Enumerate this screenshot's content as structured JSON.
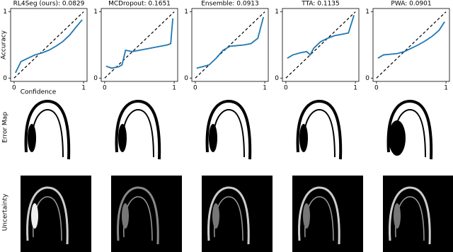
{
  "chart_data": [
    {
      "type": "line",
      "title": "RL4Seg (ours): 0.0829",
      "xlabel": "Confidence",
      "ylabel": "Accuracy",
      "x": [
        0.02,
        0.1,
        0.2,
        0.3,
        0.4,
        0.5,
        0.6,
        0.7,
        0.8,
        0.9,
        0.98
      ],
      "values": [
        0.08,
        0.25,
        0.3,
        0.35,
        0.38,
        0.42,
        0.48,
        0.55,
        0.65,
        0.78,
        0.88
      ],
      "color": "#1f77b4",
      "xlim": [
        -0.05,
        1.05
      ],
      "ylim": [
        -0.05,
        1.05
      ],
      "xticks": [
        0,
        1
      ],
      "yticks": [
        0,
        1
      ]
    },
    {
      "type": "line",
      "title": "MCDropout: 0.1651",
      "x": [
        0.02,
        0.1,
        0.2,
        0.25,
        0.3,
        0.4,
        0.5,
        0.6,
        0.7,
        0.8,
        0.9,
        0.95,
        0.98
      ],
      "values": [
        0.18,
        0.15,
        0.17,
        0.2,
        0.42,
        0.4,
        0.42,
        0.44,
        0.46,
        0.48,
        0.5,
        0.52,
        0.9
      ],
      "color": "#1f77b4",
      "xlim": [
        -0.05,
        1.05
      ],
      "ylim": [
        -0.05,
        1.05
      ],
      "xticks": [
        0,
        1
      ],
      "yticks": [
        0,
        1
      ]
    },
    {
      "type": "line",
      "title": "Ensemble: 0.0913",
      "x": [
        0.02,
        0.1,
        0.2,
        0.3,
        0.4,
        0.5,
        0.6,
        0.7,
        0.8,
        0.9,
        0.98
      ],
      "values": [
        0.15,
        0.17,
        0.2,
        0.3,
        0.42,
        0.48,
        0.49,
        0.5,
        0.52,
        0.6,
        0.92
      ],
      "color": "#1f77b4",
      "xlim": [
        -0.05,
        1.05
      ],
      "ylim": [
        -0.05,
        1.05
      ],
      "xticks": [
        0,
        1
      ],
      "yticks": [
        0,
        1
      ]
    },
    {
      "type": "line",
      "title": "TTA: 0.1135",
      "x": [
        0.02,
        0.1,
        0.2,
        0.3,
        0.35,
        0.4,
        0.5,
        0.6,
        0.7,
        0.8,
        0.9,
        0.98
      ],
      "values": [
        0.3,
        0.35,
        0.38,
        0.4,
        0.35,
        0.45,
        0.55,
        0.6,
        0.64,
        0.66,
        0.68,
        0.95
      ],
      "color": "#1f77b4",
      "xlim": [
        -0.05,
        1.05
      ],
      "ylim": [
        -0.05,
        1.05
      ],
      "xticks": [
        0,
        1
      ],
      "yticks": [
        0,
        1
      ]
    },
    {
      "type": "line",
      "title": "PWA: 0.0901",
      "x": [
        0.02,
        0.1,
        0.2,
        0.3,
        0.4,
        0.5,
        0.6,
        0.7,
        0.8,
        0.9,
        0.98
      ],
      "values": [
        0.3,
        0.35,
        0.36,
        0.37,
        0.4,
        0.45,
        0.5,
        0.56,
        0.63,
        0.72,
        0.85
      ],
      "color": "#1f77b4",
      "xlim": [
        -0.05,
        1.05
      ],
      "ylim": [
        -0.05,
        1.05
      ],
      "xticks": [
        0,
        1
      ],
      "yticks": [
        0,
        1
      ]
    }
  ],
  "row_labels": [
    "Error Map",
    "Uncertainty"
  ]
}
